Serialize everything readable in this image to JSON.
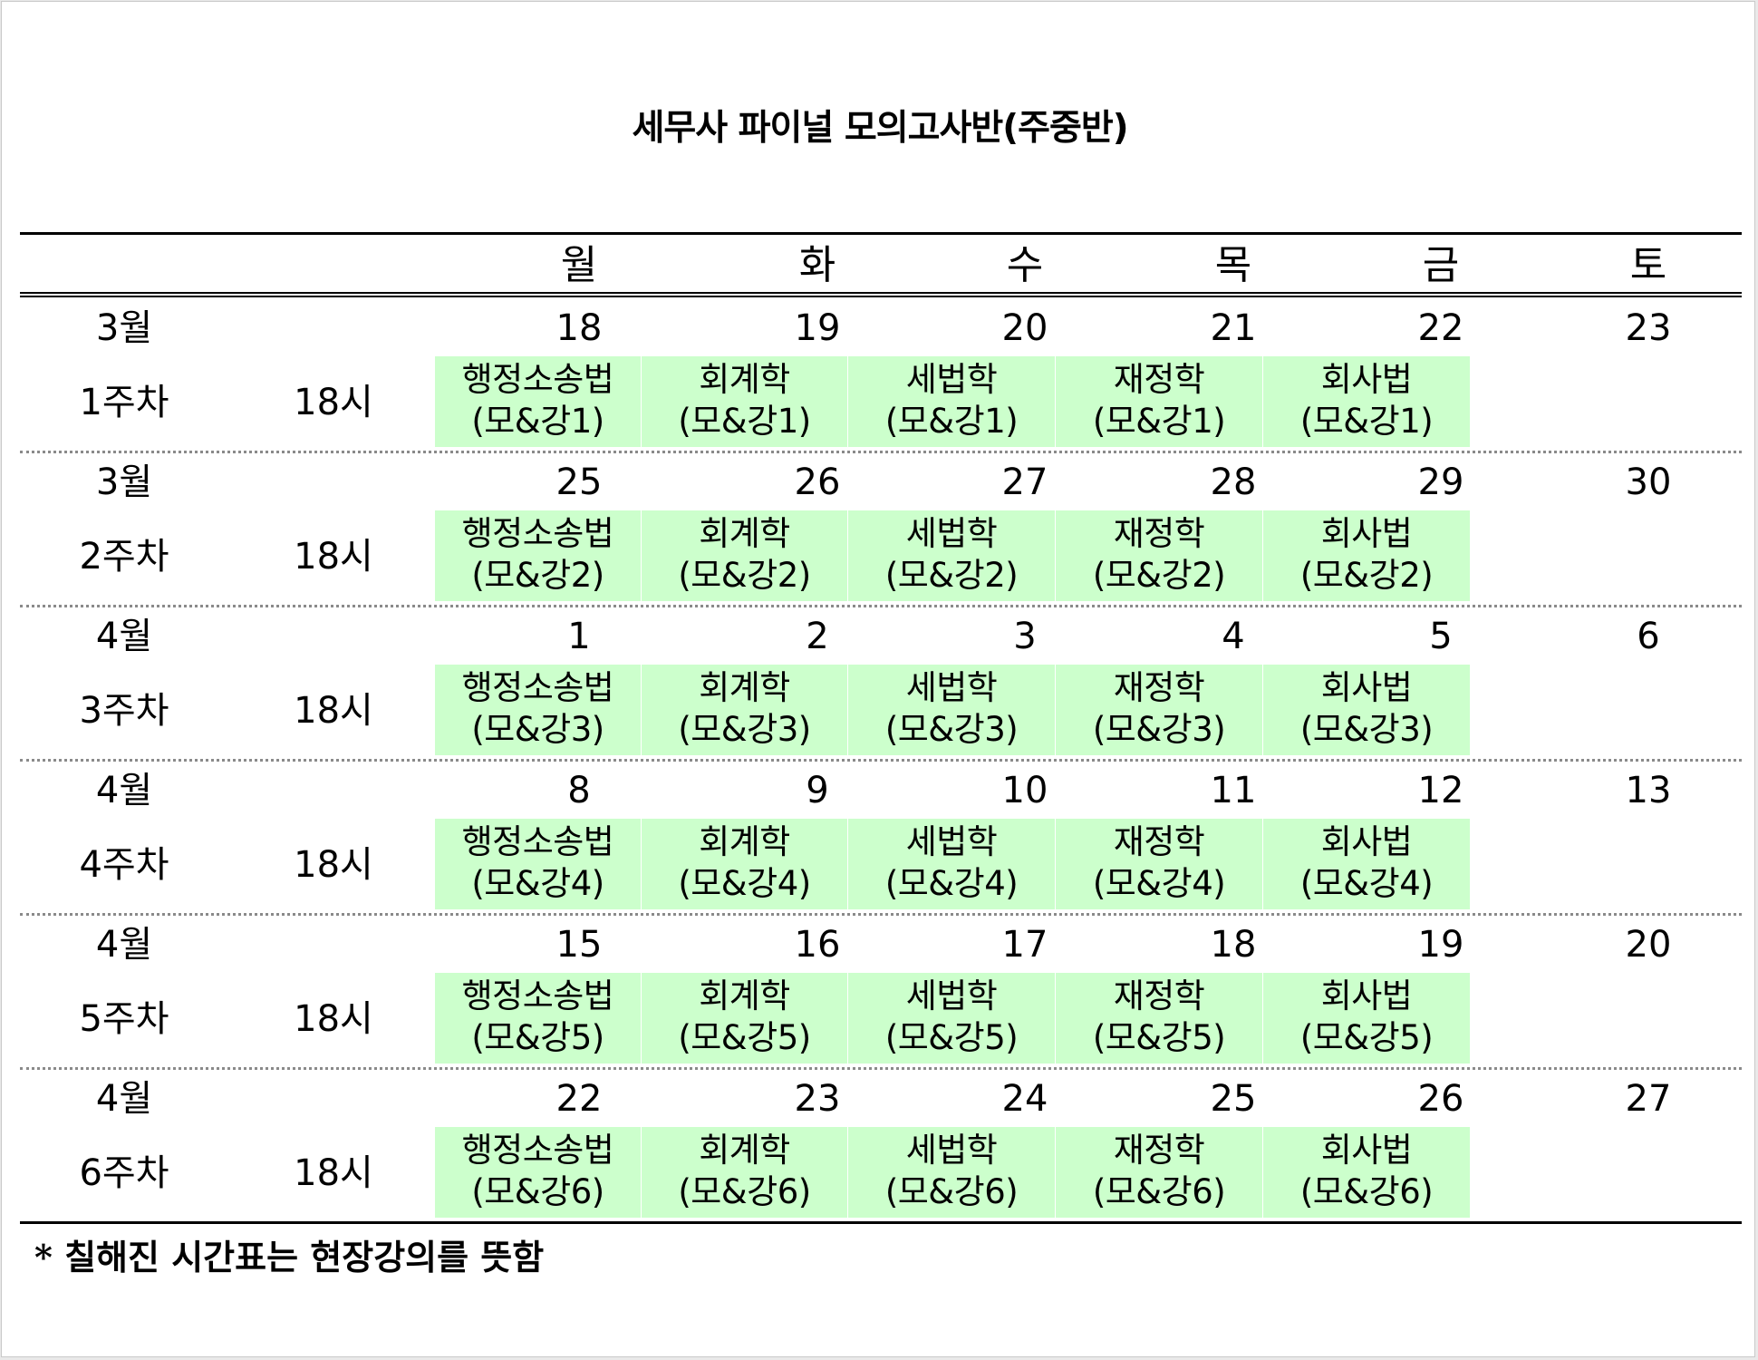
{
  "title": "세무사 파이널 모의고사반(주중반)",
  "days": [
    "월",
    "화",
    "수",
    "목",
    "금",
    "토"
  ],
  "weeks": [
    {
      "month": "3월",
      "week": "1주차",
      "time": "18시",
      "dates": [
        "18",
        "19",
        "20",
        "21",
        "22",
        "23"
      ],
      "subjects": [
        {
          "name": "행정소송법",
          "detail": "(모&강1)"
        },
        {
          "name": "회계학",
          "detail": "(모&강1)"
        },
        {
          "name": "세법학",
          "detail": "(모&강1)"
        },
        {
          "name": "재정학",
          "detail": "(모&강1)"
        },
        {
          "name": "회사법",
          "detail": "(모&강1)"
        }
      ]
    },
    {
      "month": "3월",
      "week": "2주차",
      "time": "18시",
      "dates": [
        "25",
        "26",
        "27",
        "28",
        "29",
        "30"
      ],
      "subjects": [
        {
          "name": "행정소송법",
          "detail": "(모&강2)"
        },
        {
          "name": "회계학",
          "detail": "(모&강2)"
        },
        {
          "name": "세법학",
          "detail": "(모&강2)"
        },
        {
          "name": "재정학",
          "detail": "(모&강2)"
        },
        {
          "name": "회사법",
          "detail": "(모&강2)"
        }
      ]
    },
    {
      "month": "4월",
      "week": "3주차",
      "time": "18시",
      "dates": [
        "1",
        "2",
        "3",
        "4",
        "5",
        "6"
      ],
      "subjects": [
        {
          "name": "행정소송법",
          "detail": "(모&강3)"
        },
        {
          "name": "회계학",
          "detail": "(모&강3)"
        },
        {
          "name": "세법학",
          "detail": "(모&강3)"
        },
        {
          "name": "재정학",
          "detail": "(모&강3)"
        },
        {
          "name": "회사법",
          "detail": "(모&강3)"
        }
      ]
    },
    {
      "month": "4월",
      "week": "4주차",
      "time": "18시",
      "dates": [
        "8",
        "9",
        "10",
        "11",
        "12",
        "13"
      ],
      "subjects": [
        {
          "name": "행정소송법",
          "detail": "(모&강4)"
        },
        {
          "name": "회계학",
          "detail": "(모&강4)"
        },
        {
          "name": "세법학",
          "detail": "(모&강4)"
        },
        {
          "name": "재정학",
          "detail": "(모&강4)"
        },
        {
          "name": "회사법",
          "detail": "(모&강4)"
        }
      ]
    },
    {
      "month": "4월",
      "week": "5주차",
      "time": "18시",
      "dates": [
        "15",
        "16",
        "17",
        "18",
        "19",
        "20"
      ],
      "subjects": [
        {
          "name": "행정소송법",
          "detail": "(모&강5)"
        },
        {
          "name": "회계학",
          "detail": "(모&강5)"
        },
        {
          "name": "세법학",
          "detail": "(모&강5)"
        },
        {
          "name": "재정학",
          "detail": "(모&강5)"
        },
        {
          "name": "회사법",
          "detail": "(모&강5)"
        }
      ]
    },
    {
      "month": "4월",
      "week": "6주차",
      "time": "18시",
      "dates": [
        "22",
        "23",
        "24",
        "25",
        "26",
        "27"
      ],
      "subjects": [
        {
          "name": "행정소송법",
          "detail": "(모&강6)"
        },
        {
          "name": "회계학",
          "detail": "(모&강6)"
        },
        {
          "name": "세법학",
          "detail": "(모&강6)"
        },
        {
          "name": "재정학",
          "detail": "(모&강6)"
        },
        {
          "name": "회사법",
          "detail": "(모&강6)"
        }
      ]
    }
  ],
  "footnote": "* 칠해진 시간표는 현장강의를 뜻함",
  "colors": {
    "highlight": "#ccffcc",
    "rule": "#000000"
  }
}
